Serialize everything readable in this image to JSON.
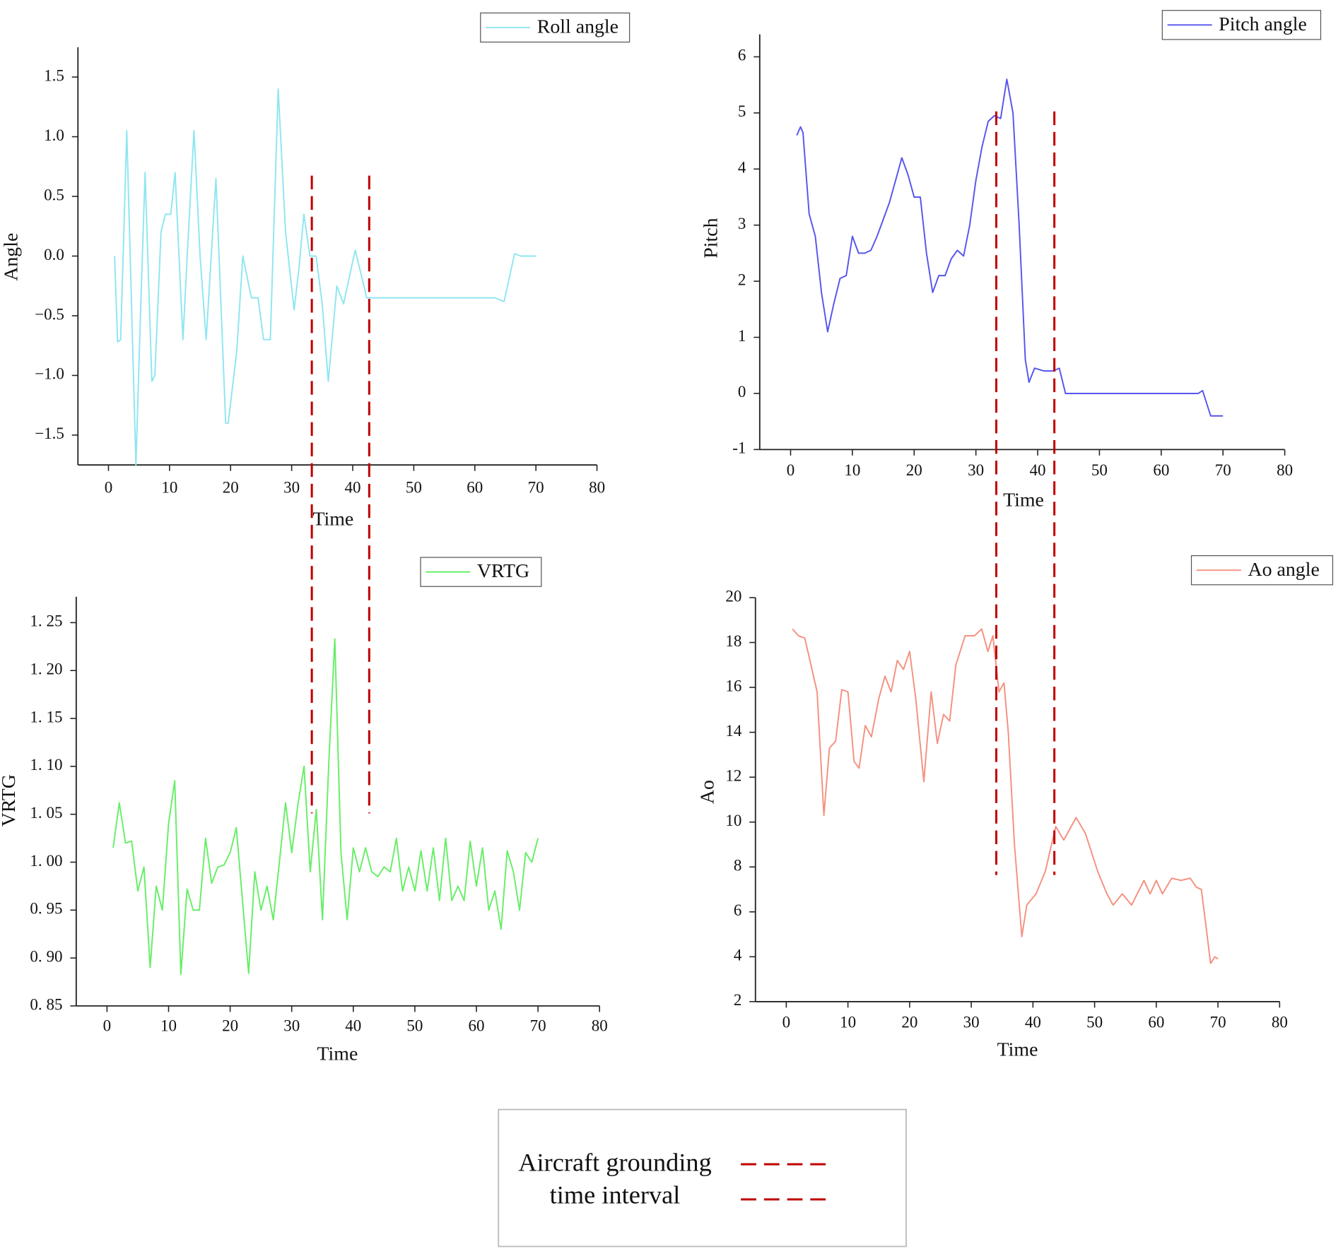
{
  "chart_data": [
    {
      "type": "line",
      "xlabel": "Time",
      "ylabel": "Angle",
      "xlim": [
        -5,
        80
      ],
      "xticks": [
        0,
        10,
        20,
        30,
        40,
        50,
        60,
        70,
        80
      ],
      "ylim": [
        -1.75,
        1.75
      ],
      "yticks": [
        {
          "value": -1.5,
          "label": "−1.5"
        },
        {
          "value": -1.0,
          "label": "−1.0"
        },
        {
          "value": -0.5,
          "label": "−0.5"
        },
        {
          "value": 0,
          "label": "0.0"
        },
        {
          "value": 0.5,
          "label": "0.5"
        },
        {
          "value": 1.0,
          "label": "1.0"
        },
        {
          "value": 1.5,
          "label": "1.5"
        }
      ],
      "x": [
        1,
        1.5,
        2,
        3,
        4.5,
        5.3,
        6,
        7.1,
        7.6,
        8.6,
        9.3,
        10.2,
        10.9,
        12.2,
        13,
        14,
        15,
        16,
        17.6,
        19.2,
        19.6,
        21,
        22,
        23.4,
        24.5,
        25.4,
        26.5,
        27.8,
        29,
        30.4,
        31.2,
        32,
        33,
        34,
        35,
        36,
        37.4,
        38.5,
        40.4,
        42.3,
        45,
        63.3,
        64.8,
        66.5,
        67.5,
        70
      ],
      "series": [
        {
          "name": "Roll angle",
          "color": "#8ee6f0",
          "values": [
            0,
            -0.72,
            -0.7,
            1.05,
            -1.75,
            -0.4,
            0.7,
            -1.05,
            -1.0,
            0.2,
            0.35,
            0.35,
            0.7,
            -0.7,
            0.1,
            1.05,
            0.0,
            -0.7,
            0.65,
            -1.4,
            -1.4,
            -0.8,
            0.0,
            -0.35,
            -0.35,
            -0.7,
            -0.7,
            1.4,
            0.2,
            -0.45,
            -0.1,
            0.35,
            0.0,
            0.0,
            -0.4,
            -1.05,
            -0.25,
            -0.4,
            0.05,
            -0.35,
            -0.35,
            -0.35,
            -0.38,
            0.02,
            0.0,
            0.0
          ]
        }
      ]
    },
    {
      "type": "line",
      "xlabel": "Time",
      "ylabel": "Pitch",
      "xlim": [
        -5,
        80
      ],
      "xticks": [
        0,
        10,
        20,
        30,
        40,
        50,
        60,
        70,
        80
      ],
      "ylim": [
        -1,
        6.4
      ],
      "yticks": [
        -1,
        0,
        1,
        2,
        3,
        4,
        5,
        6
      ],
      "x": [
        1,
        1.6,
        2,
        3,
        4,
        5,
        6,
        7,
        8,
        9,
        10,
        11,
        12,
        13,
        14,
        15,
        16,
        17,
        18,
        19,
        20,
        21,
        22,
        23,
        24,
        25,
        26,
        27,
        28,
        29,
        30,
        31,
        32,
        33,
        34,
        35,
        36,
        37,
        38,
        38.6,
        39.5,
        41,
        42.5,
        43.5,
        44.5,
        66,
        66.7,
        68,
        69,
        70
      ],
      "series": [
        {
          "name": "Pitch angle",
          "color": "#5555ee",
          "values": [
            4.6,
            4.75,
            4.65,
            3.2,
            2.8,
            1.8,
            1.1,
            1.6,
            2.05,
            2.1,
            2.8,
            2.5,
            2.5,
            2.55,
            2.8,
            3.1,
            3.4,
            3.8,
            4.2,
            3.9,
            3.5,
            3.5,
            2.5,
            1.8,
            2.1,
            2.1,
            2.4,
            2.55,
            2.45,
            3.0,
            3.8,
            4.4,
            4.85,
            4.95,
            4.9,
            5.6,
            5.0,
            3.0,
            0.6,
            0.2,
            0.45,
            0.4,
            0.4,
            0.45,
            0.0,
            0.0,
            0.05,
            -0.4,
            -0.4,
            -0.4
          ]
        }
      ]
    },
    {
      "type": "line",
      "xlabel": "Time",
      "ylabel": "VRTG",
      "xlim": [
        -5,
        80
      ],
      "xticks": [
        0,
        10,
        20,
        30,
        40,
        50,
        60,
        70,
        80
      ],
      "ylim": [
        0.85,
        1.277
      ],
      "yticks": [
        {
          "value": 0.85,
          "label": "0. 85"
        },
        {
          "value": 0.9,
          "label": "0. 90"
        },
        {
          "value": 0.95,
          "label": "0. 95"
        },
        {
          "value": 1.0,
          "label": "1. 00"
        },
        {
          "value": 1.05,
          "label": "1. 05"
        },
        {
          "value": 1.1,
          "label": "1. 10"
        },
        {
          "value": 1.15,
          "label": "1. 15"
        },
        {
          "value": 1.2,
          "label": "1. 20"
        },
        {
          "value": 1.25,
          "label": "1. 25"
        }
      ],
      "x": [
        1,
        2,
        3,
        4,
        5,
        6,
        7,
        8,
        9,
        10,
        11,
        12,
        13,
        14,
        15,
        16,
        17,
        18,
        19,
        20,
        21,
        22,
        23,
        24,
        25,
        26,
        27,
        28,
        29,
        30,
        31,
        32,
        33,
        34,
        35,
        36,
        37,
        38,
        39,
        40,
        41,
        42,
        43,
        44,
        45,
        46,
        47,
        48,
        49,
        50,
        51,
        52,
        53,
        54,
        55,
        56,
        57,
        58,
        59,
        60,
        61,
        62,
        63,
        64,
        65,
        66,
        67,
        68,
        69,
        70
      ],
      "series": [
        {
          "name": "VRTG",
          "color": "#66ee66",
          "values": [
            1.015,
            1.062,
            1.02,
            1.022,
            0.97,
            0.995,
            0.89,
            0.975,
            0.95,
            1.04,
            1.085,
            0.883,
            0.972,
            0.95,
            0.95,
            1.025,
            0.978,
            0.995,
            0.997,
            1.01,
            1.036,
            0.96,
            0.884,
            0.99,
            0.95,
            0.975,
            0.94,
            1.0,
            1.062,
            1.01,
            1.06,
            1.1,
            0.99,
            1.055,
            0.94,
            1.1,
            1.233,
            1.01,
            0.94,
            1.015,
            0.99,
            1.015,
            0.99,
            0.985,
            0.995,
            0.99,
            1.025,
            0.97,
            0.995,
            0.97,
            1.012,
            0.97,
            1.015,
            0.96,
            1.025,
            0.96,
            0.975,
            0.96,
            1.022,
            0.975,
            1.015,
            0.95,
            0.97,
            0.93,
            1.012,
            0.99,
            0.95,
            1.01,
            1.0,
            1.025
          ]
        }
      ]
    },
    {
      "type": "line",
      "xlabel": "Time",
      "ylabel": "Ao",
      "xlim": [
        -5,
        80
      ],
      "xticks": [
        0,
        10,
        20,
        30,
        40,
        50,
        60,
        70,
        80
      ],
      "ylim": [
        2,
        20
      ],
      "yticks": [
        2,
        4,
        6,
        8,
        10,
        12,
        14,
        16,
        18,
        20
      ],
      "x": [
        1,
        2,
        3,
        4,
        5,
        6.1,
        7,
        8,
        9,
        10,
        11,
        11.8,
        12.8,
        13.8,
        15,
        16,
        17,
        18,
        19,
        20,
        21,
        22.3,
        23.5,
        24.5,
        25.5,
        26.5,
        27.5,
        29,
        30.5,
        31.7,
        32.7,
        33.5,
        34.5,
        35.3,
        36,
        37,
        38.2,
        39,
        40.5,
        42,
        43.7,
        45,
        47,
        48.5,
        50.5,
        52,
        53,
        54.5,
        56,
        58,
        59,
        60,
        61,
        62.5,
        64,
        65.5,
        66.5,
        67.3,
        68,
        68.8,
        69.5,
        70
      ],
      "series": [
        {
          "name": "Ao angle",
          "color": "#f59080",
          "values": [
            18.6,
            18.3,
            18.2,
            17,
            15.8,
            10.3,
            13.3,
            13.6,
            15.9,
            15.8,
            12.7,
            12.4,
            14.3,
            13.8,
            15.5,
            16.5,
            15.8,
            17.2,
            16.8,
            17.6,
            15.5,
            11.8,
            15.8,
            13.5,
            14.8,
            14.5,
            17,
            18.3,
            18.3,
            18.6,
            17.6,
            18.3,
            15.8,
            16.2,
            14,
            9,
            4.9,
            6.3,
            6.8,
            7.8,
            9.8,
            9.2,
            10.2,
            9.5,
            7.8,
            6.8,
            6.3,
            6.8,
            6.3,
            7.4,
            6.8,
            7.4,
            6.8,
            7.5,
            7.4,
            7.5,
            7.1,
            7,
            5.5,
            3.7,
            4,
            3.9
          ]
        }
      ]
    }
  ],
  "grounding_interval": [
    33.3,
    42.7
  ],
  "legend_box": {
    "lines": [
      "Aircraft grounding",
      "time interval"
    ]
  }
}
